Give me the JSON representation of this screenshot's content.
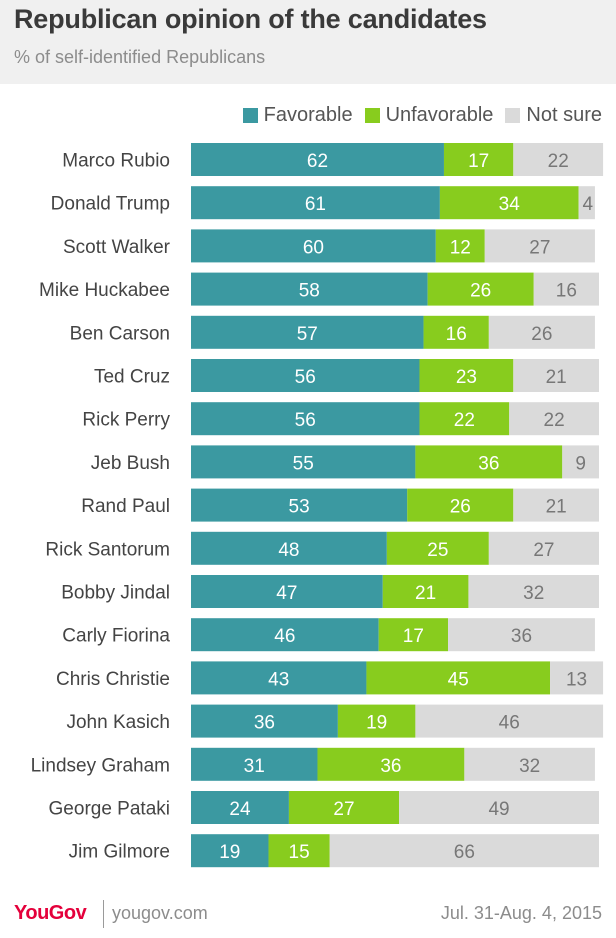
{
  "title": "Republican opinion of the candidates",
  "subtitle": "% of self-identified Republicans",
  "legend": {
    "favorable": "Favorable",
    "unfavorable": "Unfavorable",
    "not_sure": "Not sure"
  },
  "colors": {
    "favorable": "#3b99a1",
    "unfavorable": "#88cc1e",
    "not_sure": "#dadada",
    "brand": "#e4003b"
  },
  "footer": {
    "brand": "YouGov",
    "site": "yougov.com",
    "date": "Jul. 31-Aug. 4, 2015"
  },
  "chart_data": {
    "type": "bar",
    "orientation": "horizontal",
    "stacked": true,
    "categories": [
      "Marco Rubio",
      "Donald Trump",
      "Scott Walker",
      "Mike Huckabee",
      "Ben Carson",
      "Ted Cruz",
      "Rick Perry",
      "Jeb Bush",
      "Rand Paul",
      "Rick Santorum",
      "Bobby Jindal",
      "Carly Fiorina",
      "Chris Christie",
      "John Kasich",
      "Lindsey Graham",
      "George Pataki",
      "Jim Gilmore"
    ],
    "series": [
      {
        "name": "Favorable",
        "values": [
          62,
          61,
          60,
          58,
          57,
          56,
          56,
          55,
          53,
          48,
          47,
          46,
          43,
          36,
          31,
          24,
          19
        ]
      },
      {
        "name": "Unfavorable",
        "values": [
          17,
          34,
          12,
          26,
          16,
          23,
          22,
          36,
          26,
          25,
          21,
          17,
          45,
          19,
          36,
          27,
          15
        ]
      },
      {
        "name": "Not sure",
        "values": [
          22,
          4,
          27,
          16,
          26,
          21,
          22,
          9,
          21,
          27,
          32,
          36,
          13,
          46,
          32,
          49,
          66
        ]
      }
    ],
    "legend_position": "top-right",
    "grid": false
  }
}
